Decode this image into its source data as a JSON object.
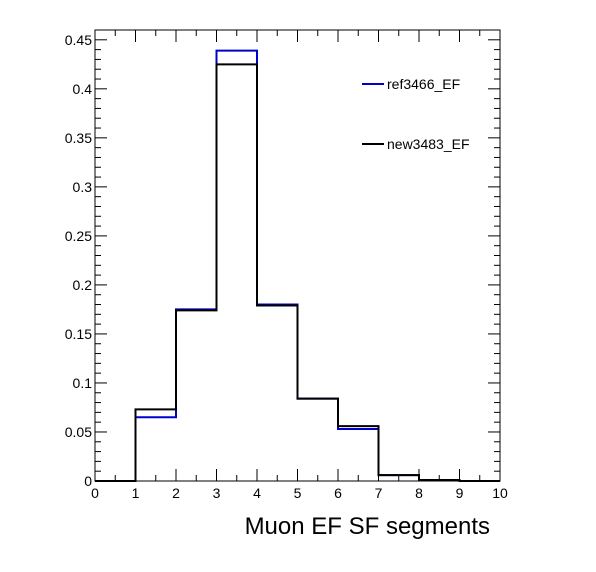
{
  "chart_data": {
    "type": "histogram",
    "xlabel": "Muon EF SF segments",
    "ylabel": "",
    "xlim": [
      0,
      10
    ],
    "ylim": [
      0,
      0.46
    ],
    "bin_edges": [
      0,
      1,
      2,
      3,
      4,
      5,
      6,
      7,
      8,
      9,
      10
    ],
    "x_ticks": [
      "0",
      "1",
      "2",
      "3",
      "4",
      "5",
      "6",
      "7",
      "8",
      "9",
      "10"
    ],
    "y_ticks": [
      {
        "value": 0,
        "label": "0"
      },
      {
        "value": 0.05,
        "label": "0.05"
      },
      {
        "value": 0.1,
        "label": "0.1"
      },
      {
        "value": 0.15,
        "label": "0.15"
      },
      {
        "value": 0.2,
        "label": "0.2"
      },
      {
        "value": 0.25,
        "label": "0.25"
      },
      {
        "value": 0.3,
        "label": "0.3"
      },
      {
        "value": 0.35,
        "label": "0.35"
      },
      {
        "value": 0.4,
        "label": "0.4"
      },
      {
        "value": 0.45,
        "label": "0.45"
      }
    ],
    "legend_position": "top-right",
    "series": [
      {
        "name": "ref3466_EF",
        "color": "#0000cc",
        "values": [
          0.0,
          0.065,
          0.175,
          0.439,
          0.18,
          0.084,
          0.053,
          0.006,
          0.001,
          0.0
        ]
      },
      {
        "name": "new3483_EF",
        "color": "#000000",
        "values": [
          0.0,
          0.073,
          0.174,
          0.425,
          0.179,
          0.084,
          0.056,
          0.006,
          0.001,
          0.0
        ]
      }
    ]
  }
}
